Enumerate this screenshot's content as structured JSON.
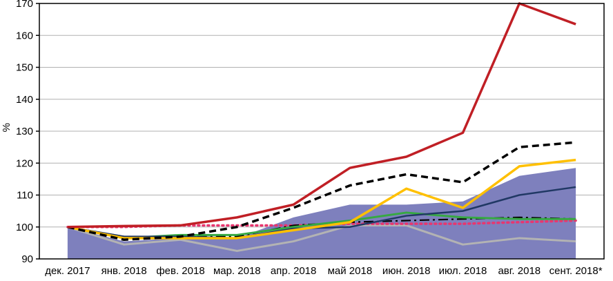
{
  "chart_data": {
    "type": "line",
    "title": "",
    "xlabel": "",
    "ylabel": "%",
    "ylim": [
      90,
      170
    ],
    "ytick_step": 10,
    "grid": "horizontal",
    "legend": "none",
    "categories": [
      "дек. 2017",
      "янв. 2018",
      "фев. 2018",
      "мар. 2018",
      "апр. 2018",
      "май 2018",
      "июн. 2018",
      "июл. 2018",
      "авг. 2018",
      "сент. 2018*"
    ],
    "colors": {
      "area_fill": "#7e80bd",
      "red": "#c01f25",
      "black_dashed": "#000000",
      "yellow": "#ffc000",
      "navy": "#203864",
      "green": "#36a942",
      "gray": "#b3b3b3",
      "pink_dotted": "#e8366f",
      "black_dashdot": "#000000",
      "gridline": "#b0b0b0"
    },
    "series": [
      {
        "name": "purple-area",
        "type": "area",
        "color": "#7e80bd",
        "values": [
          100,
          95.5,
          96.5,
          96.5,
          103,
          107,
          107,
          108,
          116,
          118.5
        ]
      },
      {
        "name": "gray-line",
        "type": "line",
        "color": "#b3b3b3",
        "width": 3,
        "values": [
          100,
          94.5,
          96,
          92.5,
          95.5,
          100.5,
          100.5,
          94.5,
          96.5,
          95.5
        ]
      },
      {
        "name": "pink-dotted-line",
        "type": "line",
        "color": "#e8366f",
        "width": 3.5,
        "dash": "2 5",
        "linecap": "round",
        "values": [
          100,
          100,
          100.5,
          100.5,
          100.5,
          101,
          101,
          101,
          101.5,
          102
        ]
      },
      {
        "name": "black-dashdot-line",
        "type": "line",
        "color": "#000000",
        "width": 2.2,
        "dash": "14 5 3 5",
        "values": [
          100,
          97,
          97,
          97,
          100.5,
          101.5,
          102,
          102.5,
          103,
          102.5
        ]
      },
      {
        "name": "green-line",
        "type": "line",
        "color": "#36a942",
        "width": 3,
        "values": [
          100,
          96.5,
          97.5,
          97.5,
          100,
          102,
          104.5,
          103,
          102.5,
          102.5
        ]
      },
      {
        "name": "navy-line",
        "type": "line",
        "color": "#203864",
        "width": 2.5,
        "values": [
          100,
          97,
          97,
          96.5,
          99.5,
          100,
          103.5,
          105,
          110,
          112.5
        ]
      },
      {
        "name": "yellow-line",
        "type": "line",
        "color": "#ffc000",
        "width": 3.5,
        "values": [
          100,
          96.5,
          96.5,
          96.5,
          99,
          101.5,
          112,
          106,
          119,
          121
        ]
      },
      {
        "name": "black-dashed-line",
        "type": "line",
        "color": "#000000",
        "width": 3.5,
        "dash": "10 6",
        "values": [
          100,
          96,
          97,
          100,
          106,
          113,
          116.5,
          114,
          125,
          126.5
        ]
      },
      {
        "name": "red-line",
        "type": "line",
        "color": "#c01f25",
        "width": 3.5,
        "values": [
          100,
          100.3,
          100.5,
          103,
          107,
          118.5,
          122,
          129.5,
          170,
          163.5
        ]
      }
    ]
  }
}
